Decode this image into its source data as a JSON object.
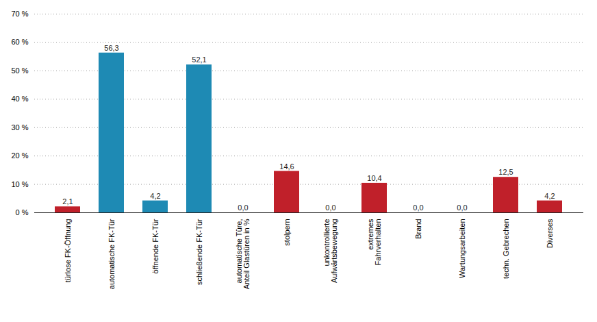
{
  "chart_data": {
    "type": "bar",
    "categories": [
      "türlose FK-Öffnung",
      "automatische FK-Tür",
      "öffnende FK-Tür",
      "schließende FK-Tür",
      "automatische Türe,\nAnteil Glastüren in %",
      "stolpern",
      "unkontrollierte\nAufwärtsbewegung",
      "extremes\nFahrverhalten",
      "Brand",
      "Wartungsarbeiten",
      "techn. Gebrechen",
      "Diverses"
    ],
    "values": [
      2.1,
      56.3,
      4.2,
      52.1,
      0.0,
      14.6,
      0.0,
      10.4,
      0.0,
      0.0,
      12.5,
      4.2
    ],
    "value_labels": [
      "2,1",
      "56,3",
      "4,2",
      "52,1",
      "0,0",
      "14,6",
      "0,0",
      "10,4",
      "0,0",
      "0,0",
      "12,5",
      "4,2"
    ],
    "colors": [
      "#c0202a",
      "#1e8ab4",
      "#1e8ab4",
      "#1e8ab4",
      "#1e8ab4",
      "#c0202a",
      "#c0202a",
      "#c0202a",
      "#c0202a",
      "#c0202a",
      "#c0202a",
      "#c0202a"
    ],
    "ylim": [
      0,
      70
    ],
    "yticks": [
      {
        "value": 0,
        "label": "0 %"
      },
      {
        "value": 10,
        "label": "10 %"
      },
      {
        "value": 20,
        "label": "20 %"
      },
      {
        "value": 30,
        "label": "30 %"
      },
      {
        "value": 40,
        "label": "40 %"
      },
      {
        "value": 50,
        "label": "50 %"
      },
      {
        "value": 60,
        "label": "60 %"
      },
      {
        "value": 70,
        "label": "70 %"
      }
    ],
    "grid": true,
    "data_labels": true
  }
}
